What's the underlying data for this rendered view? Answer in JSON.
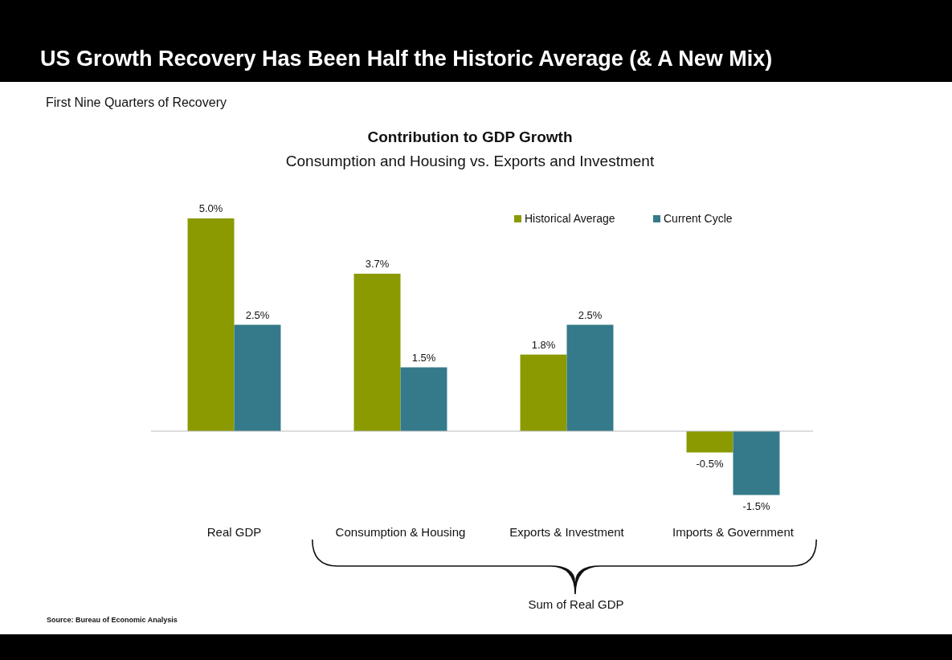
{
  "chart_data": {
    "type": "bar",
    "title": "US Growth Recovery Has Been Half the Historic  Average (& A New Mix)",
    "subtitle": "First Nine Quarters of Recovery",
    "annotations": [
      "Contribution to GDP Growth",
      "Consumption and Housing vs. Exports and Investment",
      "Sum of Real GDP",
      "Source: Bureau of Economic Analysis"
    ],
    "categories": [
      "Real GDP",
      "Consumption & Housing",
      "Exports & Investment",
      "Imports & Government"
    ],
    "series": [
      {
        "name": "Historical Average",
        "color": "#8a9a00",
        "values": [
          5.0,
          3.7,
          1.8,
          -0.5
        ],
        "value_labels": [
          "5.0%",
          "3.7%",
          "1.8%",
          "-0.5%"
        ]
      },
      {
        "name": "Current Cycle",
        "color": "#357a8a",
        "values": [
          2.5,
          1.5,
          2.5,
          -1.5
        ],
        "value_labels": [
          "2.5%",
          "1.5%",
          "2.5%",
          "-1.5%"
        ]
      }
    ],
    "legend": "top right"
  }
}
